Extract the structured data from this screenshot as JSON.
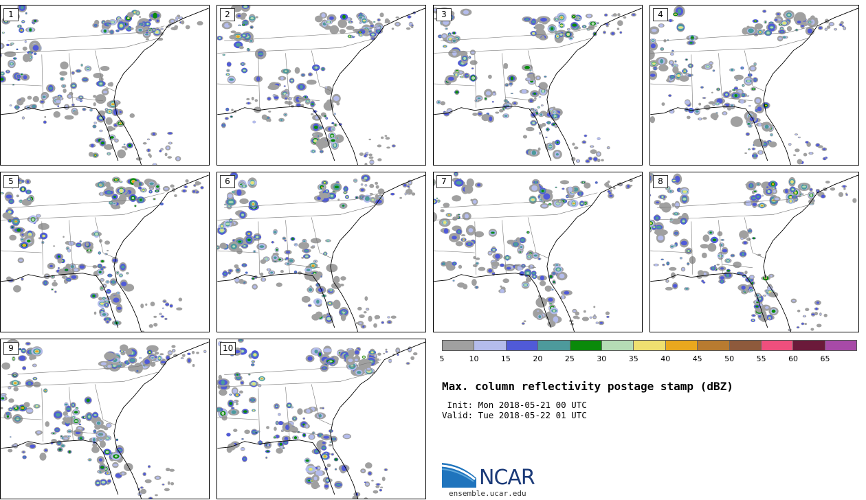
{
  "title": "Max. column reflectivity postage stamp (dBZ)",
  "init_line": " Init: Mon 2018-05-21 00 UTC",
  "valid_line": "Valid: Tue 2018-05-22 01 UTC",
  "logo": {
    "text": "NCAR",
    "url": "ensemble.ucar.edu"
  },
  "colorbar": {
    "units": "dBZ",
    "colors": [
      "#a0a0a0",
      "#b4bcec",
      "#505ad8",
      "#4d9a9c",
      "#0a8a0a",
      "#b5dcb5",
      "#efe070",
      "#e9a81e",
      "#b87b30",
      "#8e5a3c",
      "#ef4f7d",
      "#6b1a3a",
      "#a84aa8"
    ],
    "ticks": [
      "5",
      "10",
      "15",
      "20",
      "25",
      "30",
      "35",
      "40",
      "45",
      "50",
      "55",
      "60",
      "65"
    ]
  },
  "stamps": [
    {
      "label": "1"
    },
    {
      "label": "2"
    },
    {
      "label": "3"
    },
    {
      "label": "4"
    },
    {
      "label": "5"
    },
    {
      "label": "6"
    },
    {
      "label": "7"
    },
    {
      "label": "8"
    },
    {
      "label": "9"
    },
    {
      "label": "10"
    }
  ],
  "map": {
    "region": "southeastern-united-states",
    "projection": "lambert-conformal"
  }
}
